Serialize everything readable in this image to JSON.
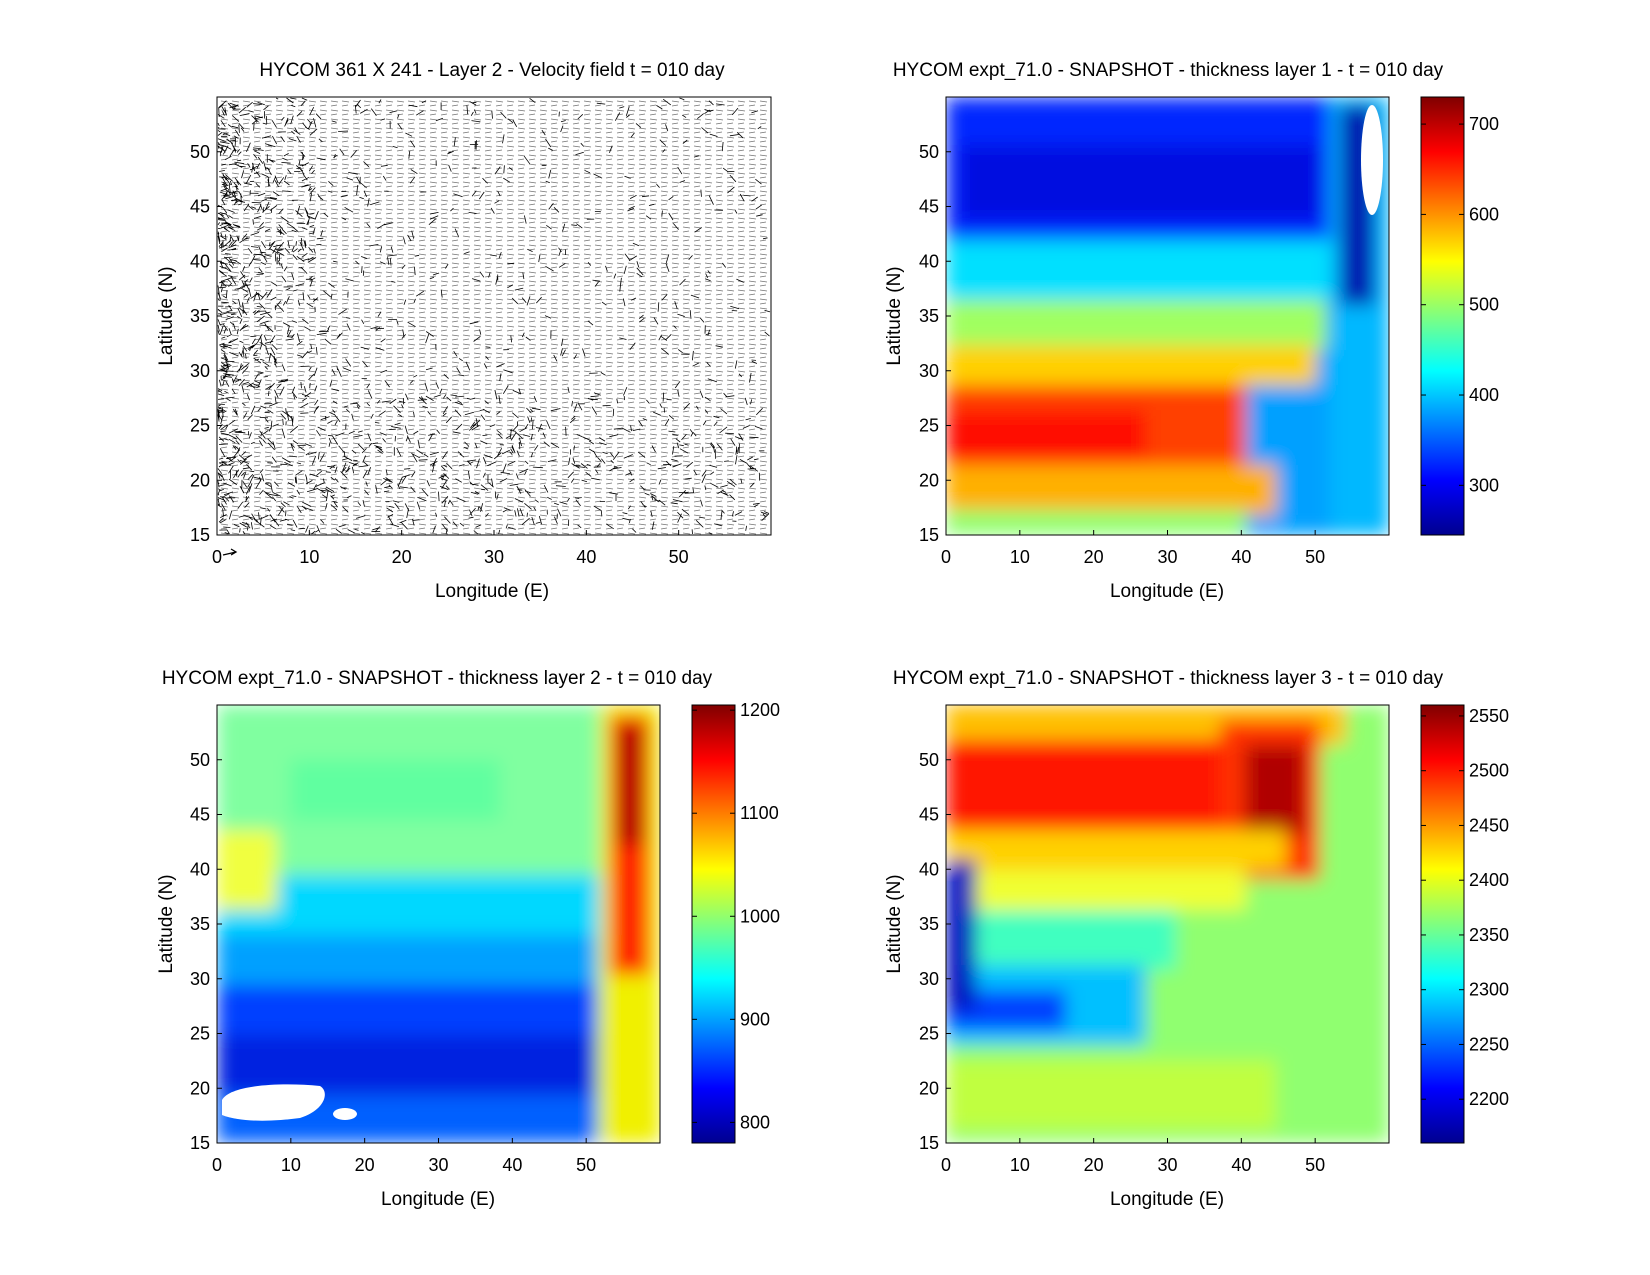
{
  "chart_data": [
    {
      "type": "quiver",
      "title": "HYCOM 361 X 241 - Layer 2 - Velocity field  t = 010 day",
      "xlabel": "Longitude (E)",
      "ylabel": "Latitude (N)",
      "xlim": [
        0,
        60
      ],
      "ylim": [
        15,
        55
      ],
      "xticks": [
        "0",
        "10",
        "20",
        "30",
        "40",
        "50"
      ],
      "yticks": [
        "15",
        "20",
        "25",
        "30",
        "35",
        "40",
        "45",
        "50"
      ]
    },
    {
      "type": "heatmap",
      "title": "HYCOM expt_71.0 - SNAPSHOT - thickness layer 1 - t = 010 day",
      "xlabel": "Longitude (E)",
      "ylabel": "Latitude (N)",
      "xlim": [
        0,
        60
      ],
      "ylim": [
        15,
        55
      ],
      "xticks": [
        "0",
        "10",
        "20",
        "30",
        "40",
        "50"
      ],
      "yticks": [
        "15",
        "20",
        "25",
        "30",
        "35",
        "40",
        "45",
        "50"
      ],
      "colorbar": {
        "min": 245,
        "max": 730,
        "ticks": [
          "300",
          "400",
          "500",
          "600",
          "700"
        ],
        "values": [
          300,
          400,
          500,
          600,
          700
        ]
      }
    },
    {
      "type": "heatmap",
      "title": "HYCOM expt_71.0 - SNAPSHOT - thickness layer 2 - t = 010 day",
      "xlabel": "Longitude (E)",
      "ylabel": "Latitude (N)",
      "xlim": [
        0,
        60
      ],
      "ylim": [
        15,
        55
      ],
      "xticks": [
        "0",
        "10",
        "20",
        "30",
        "40",
        "50"
      ],
      "yticks": [
        "15",
        "20",
        "25",
        "30",
        "35",
        "40",
        "45",
        "50"
      ],
      "colorbar": {
        "min": 780,
        "max": 1205,
        "ticks": [
          "800",
          "900",
          "1000",
          "1100",
          "1200"
        ],
        "values": [
          800,
          900,
          1000,
          1100,
          1200
        ]
      }
    },
    {
      "type": "heatmap",
      "title": "HYCOM expt_71.0 - SNAPSHOT - thickness layer 3 - t = 010 day",
      "xlabel": "Longitude (E)",
      "ylabel": "Latitude (N)",
      "xlim": [
        0,
        60
      ],
      "ylim": [
        15,
        55
      ],
      "xticks": [
        "0",
        "10",
        "20",
        "30",
        "40",
        "50"
      ],
      "yticks": [
        "15",
        "20",
        "25",
        "30",
        "35",
        "40",
        "45",
        "50"
      ],
      "colorbar": {
        "min": 2160,
        "max": 2560,
        "ticks": [
          "2200",
          "2250",
          "2300",
          "2350",
          "2400",
          "2450",
          "2500",
          "2550"
        ],
        "values": [
          2200,
          2250,
          2300,
          2350,
          2400,
          2450,
          2500,
          2550
        ]
      }
    }
  ]
}
